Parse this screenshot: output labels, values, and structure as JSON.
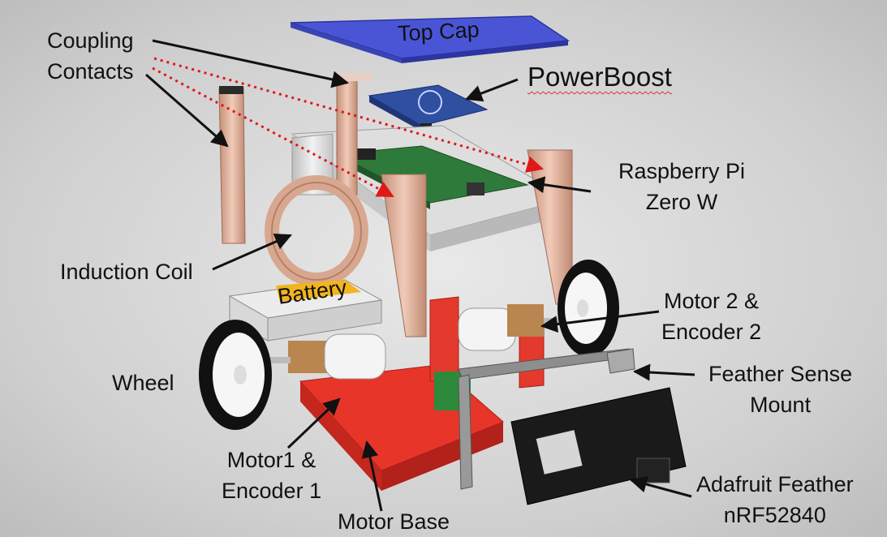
{
  "labels": {
    "coupling_contacts": [
      "Coupling",
      "Contacts"
    ],
    "top_cap": "Top Cap",
    "powerboost": "PowerBoost",
    "raspberry_pi": [
      "Raspberry Pi",
      "Zero W"
    ],
    "induction_coil": "Induction Coil",
    "battery": "Battery",
    "motor2": [
      "Motor 2 &",
      "Encoder 2"
    ],
    "wheel": "Wheel",
    "feather_sense_mount": [
      "Feather Sense",
      "Mount"
    ],
    "motor1": [
      "Motor1 &",
      "Encoder 1"
    ],
    "motor_base": "Motor Base",
    "adafruit_feather": [
      "Adafruit Feather",
      "nRF52840"
    ]
  },
  "colors": {
    "top_cap": "#4a55d6",
    "powerboost_board": "#2f4fa0",
    "raspberry_pi_board": "#2e7a3a",
    "frame": "#dcdcdc",
    "copper": "#d9a890",
    "motor_base": "#e8352a",
    "battery_label": "#f2b51f",
    "feather_board": "#1a1a1a",
    "leader_line": "#111111",
    "dotted_line": "#e01818"
  }
}
